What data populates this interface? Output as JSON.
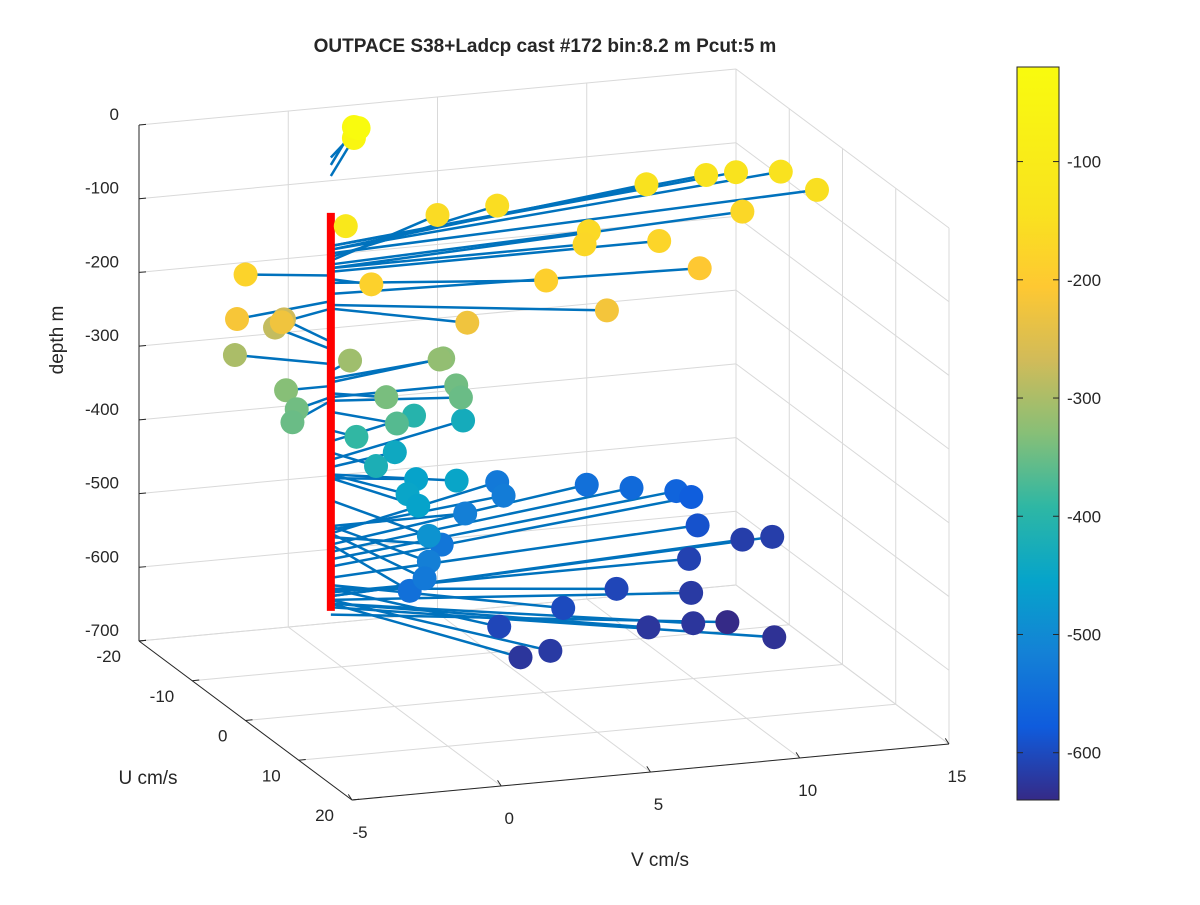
{
  "chart_data": {
    "type": "scatter",
    "title": "OUTPACE S38+Ladcp cast #172 bin:8.2 m  Pcut:5 m",
    "xlabel": "V cm/s",
    "ylabel": "U cm/s",
    "zlabel": "depth m",
    "xlim": [
      -5,
      15
    ],
    "ylim": [
      -20,
      20
    ],
    "zlim": [
      -700,
      0
    ],
    "x_ticks": [
      -5,
      0,
      5,
      10,
      15
    ],
    "y_ticks": [
      -20,
      -10,
      0,
      10,
      20
    ],
    "z_ticks": [
      0,
      -100,
      -200,
      -300,
      -400,
      -500,
      -600,
      -700
    ],
    "grid": true,
    "colormap": "parula",
    "colorbar": {
      "placement": "right",
      "ticks": [
        -100,
        -200,
        -300,
        -400,
        -500,
        -600
      ],
      "range": [
        -640,
        -20
      ]
    },
    "colors": {
      "stick": "#0072BD",
      "profile": "#FF0000"
    },
    "profile": {
      "v": 0,
      "u": -12,
      "depth_top": -95,
      "depth_bottom": -635
    },
    "points": [
      {
        "v": 2.2,
        "u": -20,
        "depth": -45
      },
      {
        "v": 2.2,
        "u": -20,
        "depth": -30
      },
      {
        "v": 2.0,
        "u": -18,
        "depth": -20
      },
      {
        "v": 0.5,
        "u": -12,
        "depth": -115
      },
      {
        "v": -2.5,
        "u": -14,
        "depth": -180
      },
      {
        "v": -3.5,
        "u": -10,
        "depth": -215
      },
      {
        "v": -2.0,
        "u": -10,
        "depth": -225
      },
      {
        "v": 1.0,
        "u": -10,
        "depth": -185
      },
      {
        "v": 5.0,
        "u": -20,
        "depth": -160
      },
      {
        "v": 7.0,
        "u": -20,
        "depth": -155
      },
      {
        "v": 12.0,
        "u": -20,
        "depth": -145
      },
      {
        "v": 14.0,
        "u": -20,
        "depth": -140
      },
      {
        "v": 15.0,
        "u": -20,
        "depth": -140
      },
      {
        "v": 16.5,
        "u": -20,
        "depth": -145
      },
      {
        "v": 17.0,
        "u": -16,
        "depth": -150
      },
      {
        "v": 9.0,
        "u": -14,
        "depth": -165
      },
      {
        "v": 8.5,
        "u": -12,
        "depth": -170
      },
      {
        "v": 11.0,
        "u": -12,
        "depth": -175
      },
      {
        "v": 14.5,
        "u": -16,
        "depth": -170
      },
      {
        "v": 6.5,
        "u": -8,
        "depth": -190
      },
      {
        "v": 8.0,
        "u": -5,
        "depth": -220
      },
      {
        "v": 12.0,
        "u": -10,
        "depth": -205
      },
      {
        "v": 3.5,
        "u": -6,
        "depth": -225
      },
      {
        "v": -0.5,
        "u": -18,
        "depth": -270
      },
      {
        "v": -0.8,
        "u": -18,
        "depth": -280
      },
      {
        "v": -2.5,
        "u": -16,
        "depth": -300
      },
      {
        "v": -1.5,
        "u": -12,
        "depth": -330
      },
      {
        "v": -1.5,
        "u": -10,
        "depth": -345
      },
      {
        "v": -2.0,
        "u": -8,
        "depth": -350
      },
      {
        "v": 1.0,
        "u": -14,
        "depth": -310
      },
      {
        "v": 4.0,
        "u": -14,
        "depth": -320
      },
      {
        "v": 4.3,
        "u": -15,
        "depth": -325
      },
      {
        "v": 4.2,
        "u": -12,
        "depth": -345
      },
      {
        "v": 4.0,
        "u": -10,
        "depth": -350
      },
      {
        "v": 1.5,
        "u": -10,
        "depth": -340
      },
      {
        "v": 1.5,
        "u": -8,
        "depth": -365
      },
      {
        "v": 0.5,
        "u": -10,
        "depth": -390
      },
      {
        "v": 0.8,
        "u": -8,
        "depth": -420
      },
      {
        "v": 3.5,
        "u": -16,
        "depth": -405
      },
      {
        "v": 5.5,
        "u": -18,
        "depth": -430
      },
      {
        "v": 2.5,
        "u": -14,
        "depth": -440
      },
      {
        "v": 2.5,
        "u": -10,
        "depth": -455
      },
      {
        "v": 1.5,
        "u": -6,
        "depth": -450
      },
      {
        "v": 1.5,
        "u": -4,
        "depth": -455
      },
      {
        "v": 3.5,
        "u": -8,
        "depth": -450
      },
      {
        "v": 1.5,
        "u": -2,
        "depth": -485
      },
      {
        "v": 1.5,
        "u": -2,
        "depth": -520
      },
      {
        "v": 4.5,
        "u": -12,
        "depth": -520
      },
      {
        "v": 6.5,
        "u": -16,
        "depth": -525
      },
      {
        "v": 1.0,
        "u": 0,
        "depth": -530
      },
      {
        "v": 0.5,
        "u": 0,
        "depth": -545
      },
      {
        "v": 3.0,
        "u": -8,
        "depth": -535
      },
      {
        "v": 7.0,
        "u": -20,
        "depth": -530
      },
      {
        "v": 10.0,
        "u": -20,
        "depth": -545
      },
      {
        "v": 11.5,
        "u": -20,
        "depth": -555
      },
      {
        "v": 13.0,
        "u": -20,
        "depth": -565
      },
      {
        "v": 13.5,
        "u": -20,
        "depth": -575
      },
      {
        "v": 13.0,
        "u": -16,
        "depth": -590
      },
      {
        "v": 3.5,
        "u": 0,
        "depth": -605
      },
      {
        "v": 6.0,
        "u": -2,
        "depth": -600
      },
      {
        "v": 8.5,
        "u": -6,
        "depth": -605
      },
      {
        "v": 12.0,
        "u": -12,
        "depth": -610
      },
      {
        "v": 14.5,
        "u": -16,
        "depth": -615
      },
      {
        "v": 15.5,
        "u": -16,
        "depth": -615
      },
      {
        "v": 11.0,
        "u": -6,
        "depth": -620
      },
      {
        "v": 10.0,
        "u": 0,
        "depth": -625
      },
      {
        "v": 8.5,
        "u": 0,
        "depth": -625
      },
      {
        "v": 4.5,
        "u": 4,
        "depth": -620
      },
      {
        "v": 3.5,
        "u": 4,
        "depth": -625
      },
      {
        "v": 12.0,
        "u": 4,
        "depth": -630
      },
      {
        "v": 11.5,
        "u": -2,
        "depth": -640
      }
    ]
  }
}
